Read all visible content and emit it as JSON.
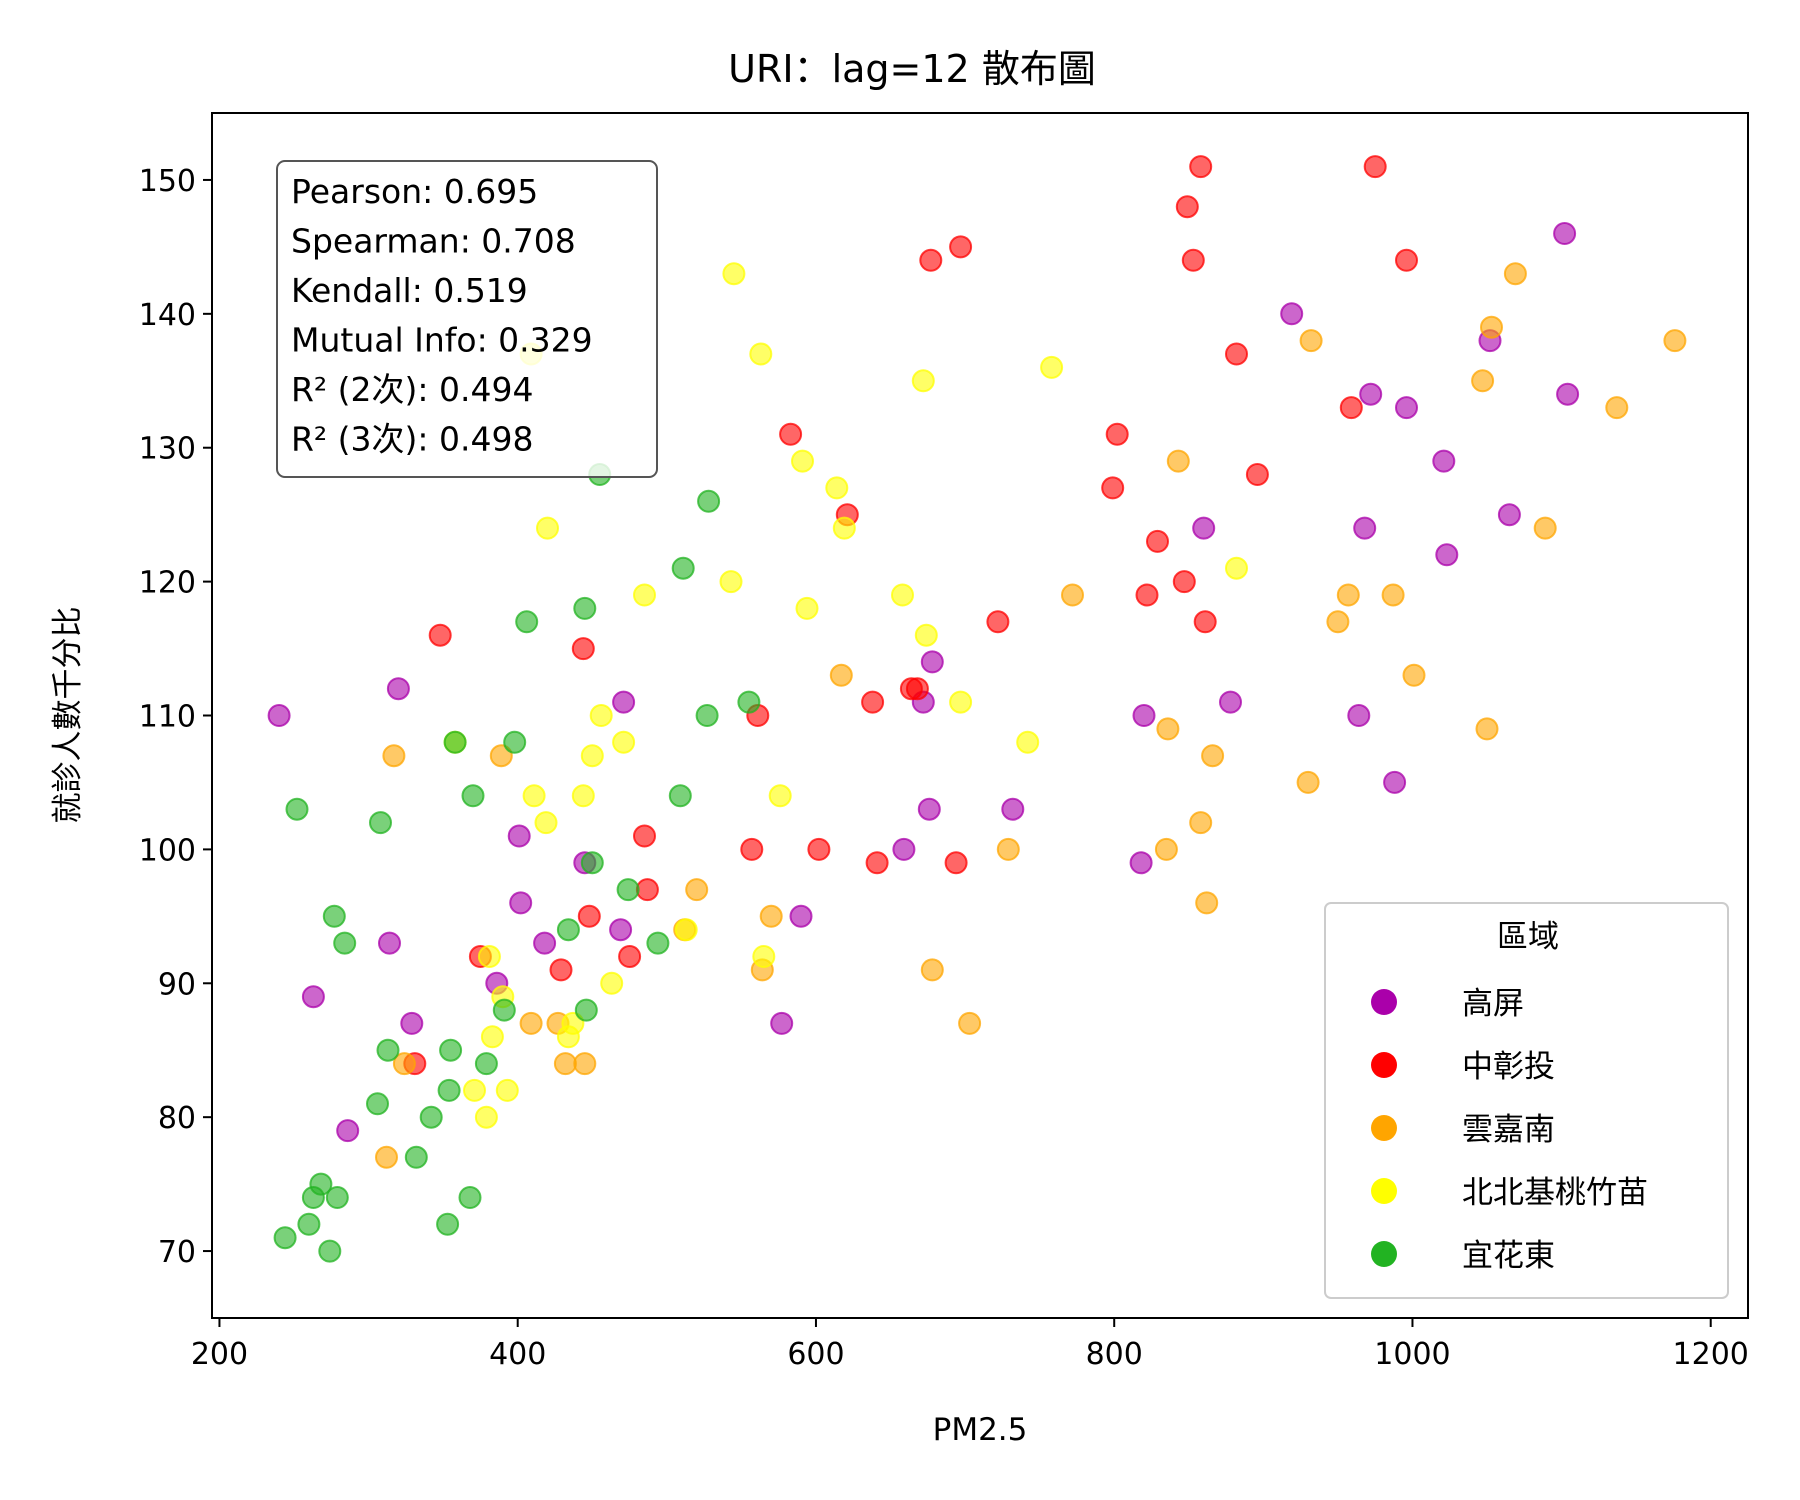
{
  "chart_data": {
    "type": "scatter",
    "title": "URI：lag=12 散布圖",
    "xlabel": "PM2.5",
    "ylabel": "就診人數千分比",
    "xlim": [
      195,
      1225
    ],
    "ylim": [
      65,
      155
    ],
    "xticks": [
      200,
      400,
      600,
      800,
      1000,
      1200
    ],
    "yticks": [
      70,
      80,
      90,
      100,
      110,
      120,
      130,
      140,
      150
    ],
    "grid": false,
    "legend": {
      "title": "區域",
      "position": "lower-right"
    },
    "stats": [
      "Pearson: 0.695",
      "Spearman: 0.708",
      "Kendall: 0.519",
      "Mutual Info: 0.329",
      "R² (2次): 0.494",
      "R² (3次): 0.498"
    ],
    "series": [
      {
        "name": "高屏",
        "color": "#aa00aa",
        "points": [
          [
            240,
            110
          ],
          [
            263,
            89
          ],
          [
            286,
            79
          ],
          [
            314,
            93
          ],
          [
            320,
            112
          ],
          [
            329,
            87
          ],
          [
            386,
            90
          ],
          [
            401,
            101
          ],
          [
            402,
            96
          ],
          [
            418,
            93
          ],
          [
            445,
            99
          ],
          [
            469,
            94
          ],
          [
            471,
            111
          ],
          [
            590,
            95
          ],
          [
            577,
            87
          ],
          [
            659,
            100
          ],
          [
            672,
            111
          ],
          [
            676,
            103
          ],
          [
            678,
            114
          ],
          [
            732,
            103
          ],
          [
            818,
            99
          ],
          [
            820,
            110
          ],
          [
            860,
            124
          ],
          [
            878,
            111
          ],
          [
            919,
            140
          ],
          [
            964,
            110
          ],
          [
            968,
            124
          ],
          [
            972,
            134
          ],
          [
            988,
            105
          ],
          [
            996,
            133
          ],
          [
            1021,
            129
          ],
          [
            1023,
            122
          ],
          [
            1052,
            138
          ],
          [
            1065,
            125
          ],
          [
            1102,
            146
          ],
          [
            1104,
            134
          ]
        ]
      },
      {
        "name": "中彰投",
        "color": "#ff0000",
        "points": [
          [
            331,
            84
          ],
          [
            348,
            116
          ],
          [
            375,
            92
          ],
          [
            429,
            91
          ],
          [
            444,
            115
          ],
          [
            448,
            95
          ],
          [
            475,
            92
          ],
          [
            485,
            101
          ],
          [
            487,
            97
          ],
          [
            557,
            100
          ],
          [
            561,
            110
          ],
          [
            583,
            131
          ],
          [
            602,
            100
          ],
          [
            621,
            125
          ],
          [
            638,
            111
          ],
          [
            641,
            99
          ],
          [
            664,
            112
          ],
          [
            668,
            112
          ],
          [
            677,
            144
          ],
          [
            694,
            99
          ],
          [
            697,
            145
          ],
          [
            722,
            117
          ],
          [
            799,
            127
          ],
          [
            802,
            131
          ],
          [
            822,
            119
          ],
          [
            829,
            123
          ],
          [
            847,
            120
          ],
          [
            849,
            148
          ],
          [
            853,
            144
          ],
          [
            858,
            151
          ],
          [
            861,
            117
          ],
          [
            882,
            137
          ],
          [
            896,
            128
          ],
          [
            959,
            133
          ],
          [
            975,
            151
          ],
          [
            996,
            144
          ]
        ]
      },
      {
        "name": "雲嘉南",
        "color": "#ffa500",
        "points": [
          [
            312,
            77
          ],
          [
            317,
            107
          ],
          [
            324,
            84
          ],
          [
            389,
            107
          ],
          [
            409,
            87
          ],
          [
            427,
            87
          ],
          [
            432,
            84
          ],
          [
            445,
            84
          ],
          [
            512,
            94
          ],
          [
            520,
            97
          ],
          [
            564,
            91
          ],
          [
            570,
            95
          ],
          [
            617,
            113
          ],
          [
            678,
            91
          ],
          [
            703,
            87
          ],
          [
            729,
            100
          ],
          [
            772,
            119
          ],
          [
            835,
            100
          ],
          [
            836,
            109
          ],
          [
            843,
            129
          ],
          [
            858,
            102
          ],
          [
            862,
            96
          ],
          [
            866,
            107
          ],
          [
            930,
            105
          ],
          [
            932,
            138
          ],
          [
            950,
            117
          ],
          [
            957,
            119
          ],
          [
            987,
            119
          ],
          [
            1001,
            113
          ],
          [
            1047,
            135
          ],
          [
            1050,
            109
          ],
          [
            1053,
            139
          ],
          [
            1069,
            143
          ],
          [
            1089,
            124
          ],
          [
            1137,
            133
          ],
          [
            1176,
            138
          ]
        ]
      },
      {
        "name": "北北基桃竹苗",
        "color": "#ffff00",
        "points": [
          [
            358,
            108
          ],
          [
            371,
            82
          ],
          [
            379,
            80
          ],
          [
            381,
            92
          ],
          [
            383,
            86
          ],
          [
            390,
            89
          ],
          [
            393,
            82
          ],
          [
            409,
            137
          ],
          [
            411,
            104
          ],
          [
            419,
            102
          ],
          [
            420,
            124
          ],
          [
            434,
            86
          ],
          [
            437,
            87
          ],
          [
            444,
            104
          ],
          [
            450,
            107
          ],
          [
            456,
            110
          ],
          [
            463,
            90
          ],
          [
            471,
            108
          ],
          [
            485,
            119
          ],
          [
            513,
            94
          ],
          [
            543,
            120
          ],
          [
            545,
            143
          ],
          [
            563,
            137
          ],
          [
            576,
            104
          ],
          [
            591,
            129
          ],
          [
            594,
            118
          ],
          [
            614,
            127
          ],
          [
            619,
            124
          ],
          [
            658,
            119
          ],
          [
            672,
            135
          ],
          [
            674,
            116
          ],
          [
            697,
            111
          ],
          [
            742,
            108
          ],
          [
            758,
            136
          ],
          [
            882,
            121
          ],
          [
            565,
            92
          ]
        ]
      },
      {
        "name": "宜花東",
        "color": "#22b322",
        "points": [
          [
            244,
            71
          ],
          [
            252,
            103
          ],
          [
            260,
            72
          ],
          [
            263,
            74
          ],
          [
            268,
            75
          ],
          [
            274,
            70
          ],
          [
            277,
            95
          ],
          [
            279,
            74
          ],
          [
            284,
            93
          ],
          [
            306,
            81
          ],
          [
            308,
            102
          ],
          [
            313,
            85
          ],
          [
            332,
            77
          ],
          [
            342,
            80
          ],
          [
            353,
            72
          ],
          [
            354,
            82
          ],
          [
            355,
            85
          ],
          [
            358,
            108
          ],
          [
            368,
            74
          ],
          [
            370,
            104
          ],
          [
            379,
            84
          ],
          [
            391,
            88
          ],
          [
            398,
            108
          ],
          [
            406,
            117
          ],
          [
            434,
            94
          ],
          [
            445,
            118
          ],
          [
            446,
            88
          ],
          [
            450,
            99
          ],
          [
            474,
            97
          ],
          [
            494,
            93
          ],
          [
            509,
            104
          ],
          [
            511,
            121
          ],
          [
            527,
            110
          ],
          [
            528,
            126
          ],
          [
            555,
            111
          ],
          [
            455,
            128
          ]
        ]
      }
    ]
  }
}
